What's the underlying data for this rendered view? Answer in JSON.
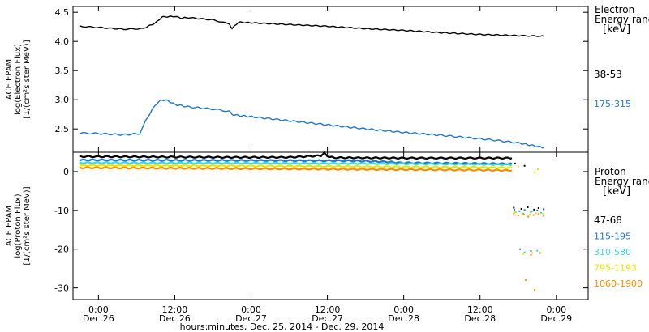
{
  "chart_data": [
    {
      "type": "line",
      "ylabel_lines": [
        "ACE EPAM",
        "log(Electron Flux)",
        "[1/(cm²s ster MeV)]"
      ],
      "ylim": [
        2.1,
        4.6
      ],
      "yticks": [
        "2.5",
        "3.0",
        "3.5",
        "4.0",
        "4.5"
      ],
      "legend_title_lines": [
        "Electron",
        "Energy ranges",
        "[keV]"
      ],
      "series": [
        {
          "name": "38-53",
          "color": "#000000",
          "x_hours": [
            -3,
            0,
            4,
            7,
            9,
            10,
            12,
            13,
            14,
            18,
            20.6,
            21,
            22,
            24,
            30,
            36,
            42,
            48,
            54,
            60,
            66,
            70
          ],
          "values": [
            4.26,
            4.24,
            4.21,
            4.22,
            4.32,
            4.42,
            4.43,
            4.4,
            4.41,
            4.37,
            4.3,
            4.22,
            4.33,
            4.32,
            4.29,
            4.26,
            4.22,
            4.19,
            4.15,
            4.12,
            4.1,
            4.09
          ]
        },
        {
          "name": "175-315",
          "color": "#1f77d0",
          "x_hours": [
            -3,
            0,
            4,
            6.5,
            7,
            8,
            9,
            10,
            11,
            12,
            14,
            18,
            20.6,
            21,
            22,
            24,
            30,
            36,
            42,
            48,
            54,
            58,
            62,
            66,
            68,
            70
          ],
          "values": [
            2.43,
            2.42,
            2.4,
            2.42,
            2.55,
            2.75,
            2.92,
            3.0,
            2.98,
            2.92,
            2.88,
            2.84,
            2.8,
            2.75,
            2.73,
            2.71,
            2.64,
            2.57,
            2.5,
            2.44,
            2.39,
            2.35,
            2.31,
            2.26,
            2.22,
            2.18
          ]
        }
      ]
    },
    {
      "type": "line",
      "xlabel": "hours:minutes, Dec. 25, 2014 - Dec. 29, 2014",
      "ylabel_lines": [
        "ACE EPAM",
        "log(Proton Flux)",
        "[1/(cm²s ster MeV)]"
      ],
      "ylim": [
        -33,
        5
      ],
      "yticks": [
        "-30",
        "-20",
        "-10",
        "0"
      ],
      "xlim_hours": [
        -4,
        77
      ],
      "xticks_hours": [
        0,
        12,
        24,
        36,
        48,
        60,
        72
      ],
      "xtick_labels": [
        {
          "time": "0:00",
          "date": "Dec.26"
        },
        {
          "time": "12:00",
          "date": "Dec.26"
        },
        {
          "time": "0:00",
          "date": "Dec.27"
        },
        {
          "time": "12:00",
          "date": "Dec.27"
        },
        {
          "time": "0:00",
          "date": "Dec.28"
        },
        {
          "time": "12:00",
          "date": "Dec.28"
        },
        {
          "time": "0:00",
          "date": "Dec.29"
        }
      ],
      "legend_title_lines": [
        "Proton",
        "Energy ranges",
        "[keV]"
      ],
      "series": [
        {
          "name": "47-68",
          "color": "#000000",
          "x_hours": [
            -3,
            20,
            30,
            35,
            35.5,
            36,
            37,
            48,
            60,
            65
          ],
          "values": [
            3.9,
            3.7,
            3.7,
            4.1,
            5.0,
            4.0,
            3.6,
            3.5,
            3.5,
            3.5
          ]
        },
        {
          "name": "115-195",
          "color": "#1f77d0",
          "x_hours": [
            -3,
            20,
            40,
            46,
            47,
            60,
            65
          ],
          "values": [
            3.0,
            2.9,
            2.8,
            2.5,
            2.3,
            2.1,
            2.0
          ]
        },
        {
          "name": "310-580",
          "color": "#40d8d8",
          "x_hours": [
            -3,
            20,
            40,
            60,
            65
          ],
          "values": [
            2.3,
            2.2,
            2.1,
            1.9,
            1.8
          ]
        },
        {
          "name": "795-1193",
          "color": "#e6e600",
          "x_hours": [
            -3,
            20,
            40,
            60,
            65
          ],
          "values": [
            1.6,
            1.5,
            1.3,
            1.1,
            1.0
          ]
        },
        {
          "name": "1060-1900",
          "color": "#ff8c00",
          "x_hours": [
            -3,
            20,
            40,
            60,
            65
          ],
          "values": [
            1.0,
            0.8,
            0.6,
            0.4,
            0.3
          ]
        }
      ],
      "scatter_points": [
        {
          "series": "47-68",
          "x_hours": [
            65.3,
            66.5,
            67.5,
            68.5,
            69.2,
            70.0,
            65.5,
            67.0
          ],
          "values": [
            -9.3,
            -9.6,
            -9.2,
            -9.8,
            -9.4,
            -9.7,
            2.1,
            1.5
          ]
        },
        {
          "series": "115-195",
          "x_hours": [
            65.4,
            66.2,
            67.0,
            68.0,
            69.0,
            70.0,
            66.3,
            68.0,
            69.4
          ],
          "values": [
            -9.8,
            -10.2,
            -9.9,
            -10.4,
            -10.0,
            -9.7,
            -20.0,
            -20.5,
            -21.0
          ]
        },
        {
          "series": "310-580",
          "x_hours": [
            65.6,
            66.8,
            68.2,
            69.6,
            67.0,
            69.0
          ],
          "values": [
            -10.4,
            -10.8,
            -10.2,
            -10.6,
            -20.8,
            -20.4
          ]
        },
        {
          "series": "795-1193",
          "x_hours": [
            65.5,
            66.6,
            67.8,
            68.8,
            69.9,
            66.8,
            68.2,
            69.5,
            66.0,
            68.6,
            69.1
          ],
          "values": [
            -10.5,
            -10.9,
            -11.1,
            -10.7,
            -10.8,
            -21.2,
            -21.0,
            -20.9,
            1.2,
            -0.3,
            0.6
          ]
        },
        {
          "series": "1060-1900",
          "x_hours": [
            65.3,
            66.0,
            66.9,
            67.6,
            68.4,
            69.2,
            70.0,
            67.2,
            68.6,
            68.0
          ],
          "values": [
            -10.8,
            -11.3,
            -11.0,
            -11.6,
            -11.2,
            -10.9,
            -11.4,
            -28.0,
            -30.5,
            -21.5
          ]
        }
      ]
    }
  ]
}
